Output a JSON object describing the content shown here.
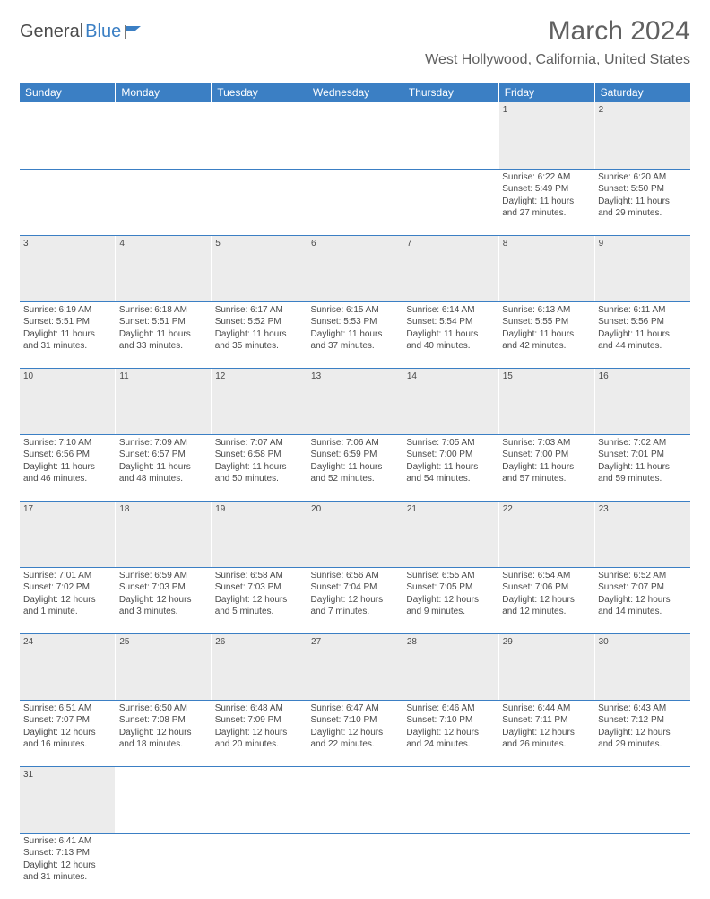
{
  "logo": {
    "part1": "General",
    "part2": "Blue"
  },
  "title": "March 2024",
  "location": "West Hollywood, California, United States",
  "dayHeaders": [
    "Sunday",
    "Monday",
    "Tuesday",
    "Wednesday",
    "Thursday",
    "Friday",
    "Saturday"
  ],
  "colors": {
    "headerBg": "#3b7fc4",
    "dayNumBg": "#ececec",
    "text": "#4a4a4a"
  },
  "weeks": [
    [
      {
        "num": "",
        "empty": true
      },
      {
        "num": "",
        "empty": true
      },
      {
        "num": "",
        "empty": true
      },
      {
        "num": "",
        "empty": true
      },
      {
        "num": "",
        "empty": true
      },
      {
        "num": "1",
        "sunrise": "Sunrise: 6:22 AM",
        "sunset": "Sunset: 5:49 PM",
        "daylight": "Daylight: 11 hours and 27 minutes."
      },
      {
        "num": "2",
        "sunrise": "Sunrise: 6:20 AM",
        "sunset": "Sunset: 5:50 PM",
        "daylight": "Daylight: 11 hours and 29 minutes."
      }
    ],
    [
      {
        "num": "3",
        "sunrise": "Sunrise: 6:19 AM",
        "sunset": "Sunset: 5:51 PM",
        "daylight": "Daylight: 11 hours and 31 minutes."
      },
      {
        "num": "4",
        "sunrise": "Sunrise: 6:18 AM",
        "sunset": "Sunset: 5:51 PM",
        "daylight": "Daylight: 11 hours and 33 minutes."
      },
      {
        "num": "5",
        "sunrise": "Sunrise: 6:17 AM",
        "sunset": "Sunset: 5:52 PM",
        "daylight": "Daylight: 11 hours and 35 minutes."
      },
      {
        "num": "6",
        "sunrise": "Sunrise: 6:15 AM",
        "sunset": "Sunset: 5:53 PM",
        "daylight": "Daylight: 11 hours and 37 minutes."
      },
      {
        "num": "7",
        "sunrise": "Sunrise: 6:14 AM",
        "sunset": "Sunset: 5:54 PM",
        "daylight": "Daylight: 11 hours and 40 minutes."
      },
      {
        "num": "8",
        "sunrise": "Sunrise: 6:13 AM",
        "sunset": "Sunset: 5:55 PM",
        "daylight": "Daylight: 11 hours and 42 minutes."
      },
      {
        "num": "9",
        "sunrise": "Sunrise: 6:11 AM",
        "sunset": "Sunset: 5:56 PM",
        "daylight": "Daylight: 11 hours and 44 minutes."
      }
    ],
    [
      {
        "num": "10",
        "sunrise": "Sunrise: 7:10 AM",
        "sunset": "Sunset: 6:56 PM",
        "daylight": "Daylight: 11 hours and 46 minutes."
      },
      {
        "num": "11",
        "sunrise": "Sunrise: 7:09 AM",
        "sunset": "Sunset: 6:57 PM",
        "daylight": "Daylight: 11 hours and 48 minutes."
      },
      {
        "num": "12",
        "sunrise": "Sunrise: 7:07 AM",
        "sunset": "Sunset: 6:58 PM",
        "daylight": "Daylight: 11 hours and 50 minutes."
      },
      {
        "num": "13",
        "sunrise": "Sunrise: 7:06 AM",
        "sunset": "Sunset: 6:59 PM",
        "daylight": "Daylight: 11 hours and 52 minutes."
      },
      {
        "num": "14",
        "sunrise": "Sunrise: 7:05 AM",
        "sunset": "Sunset: 7:00 PM",
        "daylight": "Daylight: 11 hours and 54 minutes."
      },
      {
        "num": "15",
        "sunrise": "Sunrise: 7:03 AM",
        "sunset": "Sunset: 7:00 PM",
        "daylight": "Daylight: 11 hours and 57 minutes."
      },
      {
        "num": "16",
        "sunrise": "Sunrise: 7:02 AM",
        "sunset": "Sunset: 7:01 PM",
        "daylight": "Daylight: 11 hours and 59 minutes."
      }
    ],
    [
      {
        "num": "17",
        "sunrise": "Sunrise: 7:01 AM",
        "sunset": "Sunset: 7:02 PM",
        "daylight": "Daylight: 12 hours and 1 minute."
      },
      {
        "num": "18",
        "sunrise": "Sunrise: 6:59 AM",
        "sunset": "Sunset: 7:03 PM",
        "daylight": "Daylight: 12 hours and 3 minutes."
      },
      {
        "num": "19",
        "sunrise": "Sunrise: 6:58 AM",
        "sunset": "Sunset: 7:03 PM",
        "daylight": "Daylight: 12 hours and 5 minutes."
      },
      {
        "num": "20",
        "sunrise": "Sunrise: 6:56 AM",
        "sunset": "Sunset: 7:04 PM",
        "daylight": "Daylight: 12 hours and 7 minutes."
      },
      {
        "num": "21",
        "sunrise": "Sunrise: 6:55 AM",
        "sunset": "Sunset: 7:05 PM",
        "daylight": "Daylight: 12 hours and 9 minutes."
      },
      {
        "num": "22",
        "sunrise": "Sunrise: 6:54 AM",
        "sunset": "Sunset: 7:06 PM",
        "daylight": "Daylight: 12 hours and 12 minutes."
      },
      {
        "num": "23",
        "sunrise": "Sunrise: 6:52 AM",
        "sunset": "Sunset: 7:07 PM",
        "daylight": "Daylight: 12 hours and 14 minutes."
      }
    ],
    [
      {
        "num": "24",
        "sunrise": "Sunrise: 6:51 AM",
        "sunset": "Sunset: 7:07 PM",
        "daylight": "Daylight: 12 hours and 16 minutes."
      },
      {
        "num": "25",
        "sunrise": "Sunrise: 6:50 AM",
        "sunset": "Sunset: 7:08 PM",
        "daylight": "Daylight: 12 hours and 18 minutes."
      },
      {
        "num": "26",
        "sunrise": "Sunrise: 6:48 AM",
        "sunset": "Sunset: 7:09 PM",
        "daylight": "Daylight: 12 hours and 20 minutes."
      },
      {
        "num": "27",
        "sunrise": "Sunrise: 6:47 AM",
        "sunset": "Sunset: 7:10 PM",
        "daylight": "Daylight: 12 hours and 22 minutes."
      },
      {
        "num": "28",
        "sunrise": "Sunrise: 6:46 AM",
        "sunset": "Sunset: 7:10 PM",
        "daylight": "Daylight: 12 hours and 24 minutes."
      },
      {
        "num": "29",
        "sunrise": "Sunrise: 6:44 AM",
        "sunset": "Sunset: 7:11 PM",
        "daylight": "Daylight: 12 hours and 26 minutes."
      },
      {
        "num": "30",
        "sunrise": "Sunrise: 6:43 AM",
        "sunset": "Sunset: 7:12 PM",
        "daylight": "Daylight: 12 hours and 29 minutes."
      }
    ],
    [
      {
        "num": "31",
        "sunrise": "Sunrise: 6:41 AM",
        "sunset": "Sunset: 7:13 PM",
        "daylight": "Daylight: 12 hours and 31 minutes."
      },
      {
        "num": "",
        "empty": true
      },
      {
        "num": "",
        "empty": true
      },
      {
        "num": "",
        "empty": true
      },
      {
        "num": "",
        "empty": true
      },
      {
        "num": "",
        "empty": true
      },
      {
        "num": "",
        "empty": true
      }
    ]
  ]
}
